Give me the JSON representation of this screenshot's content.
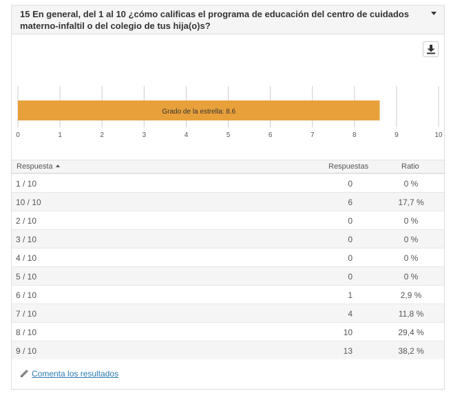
{
  "question": {
    "title": "15 En general, del 1 al 10 ¿cómo calificas el programa de educación del centro de cuidados materno-infaltil o del colegio de tus hija(o)s?"
  },
  "icons": {
    "download": "download-icon",
    "caret": "chevron-down-icon",
    "pencil": "pencil-icon"
  },
  "colors": {
    "bar": "#e8a03a",
    "grid": "#cccccc"
  },
  "chart_data": {
    "type": "bar",
    "orientation": "horizontal",
    "values": [
      8.6
    ],
    "bar_label": "Grado de la estrella: 8.6",
    "xlim": [
      0,
      10
    ],
    "x_ticks": [
      "0",
      "1",
      "2",
      "3",
      "4",
      "5",
      "6",
      "7",
      "8",
      "9",
      "10"
    ],
    "grid": true
  },
  "table": {
    "headers": {
      "response": "Respuesta",
      "count": "Respuestas",
      "ratio": "Ratio"
    },
    "rows": [
      {
        "response": "1 / 10",
        "count": "0",
        "ratio": "0 %"
      },
      {
        "response": "10 / 10",
        "count": "6",
        "ratio": "17,7 %"
      },
      {
        "response": "2 / 10",
        "count": "0",
        "ratio": "0 %"
      },
      {
        "response": "3 / 10",
        "count": "0",
        "ratio": "0 %"
      },
      {
        "response": "4 / 10",
        "count": "0",
        "ratio": "0 %"
      },
      {
        "response": "5 / 10",
        "count": "0",
        "ratio": "0 %"
      },
      {
        "response": "6 / 10",
        "count": "1",
        "ratio": "2,9 %"
      },
      {
        "response": "7 / 10",
        "count": "4",
        "ratio": "11,8 %"
      },
      {
        "response": "8 / 10",
        "count": "10",
        "ratio": "29,4 %"
      },
      {
        "response": "9 / 10",
        "count": "13",
        "ratio": "38,2 %"
      }
    ]
  },
  "footer": {
    "comment_link": "Comenta los resultados"
  }
}
